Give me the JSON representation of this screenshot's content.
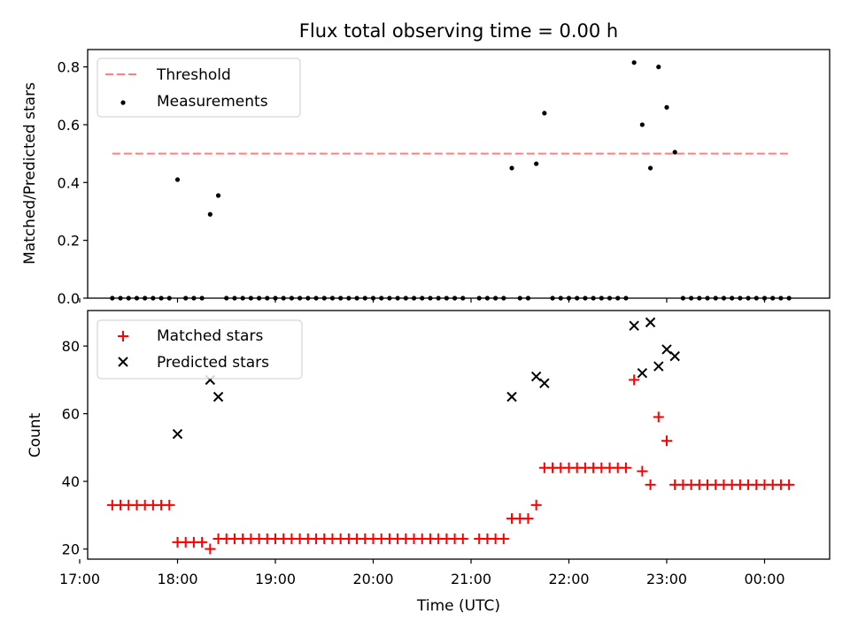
{
  "chart_data": [
    {
      "type": "scatter",
      "title": "Flux total observing time = 0.00 h",
      "xlabel": "",
      "ylabel": "Matched/Predicted stars",
      "ylim": [
        0,
        0.86
      ],
      "yticks": [
        "0.0",
        "0.2",
        "0.4",
        "0.6",
        "0.8"
      ],
      "legend_position": "top-left",
      "threshold": {
        "name": "Threshold",
        "value": 0.5,
        "x_range": [
          "17:20",
          "00:15"
        ],
        "color": "#ff7f7f"
      },
      "series": [
        {
          "name": "Measurements",
          "color": "#000000",
          "points": [
            [
              "17:20",
              0
            ],
            [
              "17:25",
              0
            ],
            [
              "17:30",
              0
            ],
            [
              "17:35",
              0
            ],
            [
              "17:40",
              0
            ],
            [
              "17:45",
              0
            ],
            [
              "17:50",
              0
            ],
            [
              "17:55",
              0
            ],
            [
              "18:00",
              0.41
            ],
            [
              "18:05",
              0
            ],
            [
              "18:10",
              0
            ],
            [
              "18:15",
              0
            ],
            [
              "18:20",
              0.29
            ],
            [
              "18:25",
              0.355
            ],
            [
              "18:30",
              0
            ],
            [
              "18:35",
              0
            ],
            [
              "18:40",
              0
            ],
            [
              "18:45",
              0
            ],
            [
              "18:50",
              0
            ],
            [
              "18:55",
              0
            ],
            [
              "19:00",
              0
            ],
            [
              "19:05",
              0
            ],
            [
              "19:10",
              0
            ],
            [
              "19:15",
              0
            ],
            [
              "19:20",
              0
            ],
            [
              "19:25",
              0
            ],
            [
              "19:30",
              0
            ],
            [
              "19:35",
              0
            ],
            [
              "19:40",
              0
            ],
            [
              "19:45",
              0
            ],
            [
              "19:50",
              0
            ],
            [
              "19:55",
              0
            ],
            [
              "20:00",
              0
            ],
            [
              "20:05",
              0
            ],
            [
              "20:10",
              0
            ],
            [
              "20:15",
              0
            ],
            [
              "20:20",
              0
            ],
            [
              "20:25",
              0
            ],
            [
              "20:30",
              0
            ],
            [
              "20:35",
              0
            ],
            [
              "20:40",
              0
            ],
            [
              "20:45",
              0
            ],
            [
              "20:50",
              0
            ],
            [
              "20:55",
              0
            ],
            [
              "21:05",
              0
            ],
            [
              "21:10",
              0
            ],
            [
              "21:15",
              0
            ],
            [
              "21:20",
              0
            ],
            [
              "21:25",
              0.45
            ],
            [
              "21:30",
              0
            ],
            [
              "21:35",
              0
            ],
            [
              "21:40",
              0.465
            ],
            [
              "21:45",
              0.64
            ],
            [
              "21:50",
              0
            ],
            [
              "21:55",
              0
            ],
            [
              "22:00",
              0
            ],
            [
              "22:05",
              0
            ],
            [
              "22:10",
              0
            ],
            [
              "22:15",
              0
            ],
            [
              "22:20",
              0
            ],
            [
              "22:25",
              0
            ],
            [
              "22:30",
              0
            ],
            [
              "22:35",
              0
            ],
            [
              "22:40",
              0.815
            ],
            [
              "22:45",
              0.6
            ],
            [
              "22:50",
              0.45
            ],
            [
              "22:55",
              0.8
            ],
            [
              "23:00",
              0.66
            ],
            [
              "23:05",
              0.505
            ],
            [
              "23:10",
              0
            ],
            [
              "23:15",
              0
            ],
            [
              "23:20",
              0
            ],
            [
              "23:25",
              0
            ],
            [
              "23:30",
              0
            ],
            [
              "23:35",
              0
            ],
            [
              "23:40",
              0
            ],
            [
              "23:45",
              0
            ],
            [
              "23:50",
              0
            ],
            [
              "23:55",
              0
            ],
            [
              "00:00",
              0
            ],
            [
              "00:05",
              0
            ],
            [
              "00:10",
              0
            ],
            [
              "00:15",
              0
            ]
          ]
        }
      ]
    },
    {
      "type": "scatter",
      "title": "",
      "xlabel": "Time (UTC)",
      "ylabel": "Count",
      "ylim": [
        17,
        90.5
      ],
      "yticks": [
        "20",
        "40",
        "60",
        "80"
      ],
      "xticks": [
        "17:00",
        "18:00",
        "19:00",
        "20:00",
        "21:00",
        "22:00",
        "23:00",
        "00:00"
      ],
      "legend_position": "top-left",
      "series": [
        {
          "name": "Matched stars",
          "color": "#ff0000",
          "points": [
            [
              "17:20",
              33
            ],
            [
              "17:25",
              33
            ],
            [
              "17:30",
              33
            ],
            [
              "17:35",
              33
            ],
            [
              "17:40",
              33
            ],
            [
              "17:45",
              33
            ],
            [
              "17:50",
              33
            ],
            [
              "17:55",
              33
            ],
            [
              "18:00",
              22
            ],
            [
              "18:05",
              22
            ],
            [
              "18:10",
              22
            ],
            [
              "18:15",
              22
            ],
            [
              "18:20",
              20
            ],
            [
              "18:25",
              23
            ],
            [
              "18:30",
              23
            ],
            [
              "18:35",
              23
            ],
            [
              "18:40",
              23
            ],
            [
              "18:45",
              23
            ],
            [
              "18:50",
              23
            ],
            [
              "18:55",
              23
            ],
            [
              "19:00",
              23
            ],
            [
              "19:05",
              23
            ],
            [
              "19:10",
              23
            ],
            [
              "19:15",
              23
            ],
            [
              "19:20",
              23
            ],
            [
              "19:25",
              23
            ],
            [
              "19:30",
              23
            ],
            [
              "19:35",
              23
            ],
            [
              "19:40",
              23
            ],
            [
              "19:45",
              23
            ],
            [
              "19:50",
              23
            ],
            [
              "19:55",
              23
            ],
            [
              "20:00",
              23
            ],
            [
              "20:05",
              23
            ],
            [
              "20:10",
              23
            ],
            [
              "20:15",
              23
            ],
            [
              "20:20",
              23
            ],
            [
              "20:25",
              23
            ],
            [
              "20:30",
              23
            ],
            [
              "20:35",
              23
            ],
            [
              "20:40",
              23
            ],
            [
              "20:45",
              23
            ],
            [
              "20:50",
              23
            ],
            [
              "20:55",
              23
            ],
            [
              "21:05",
              23
            ],
            [
              "21:10",
              23
            ],
            [
              "21:15",
              23
            ],
            [
              "21:20",
              23
            ],
            [
              "21:25",
              29
            ],
            [
              "21:30",
              29
            ],
            [
              "21:35",
              29
            ],
            [
              "21:40",
              33
            ],
            [
              "21:45",
              44
            ],
            [
              "21:50",
              44
            ],
            [
              "21:55",
              44
            ],
            [
              "22:00",
              44
            ],
            [
              "22:05",
              44
            ],
            [
              "22:10",
              44
            ],
            [
              "22:15",
              44
            ],
            [
              "22:20",
              44
            ],
            [
              "22:25",
              44
            ],
            [
              "22:30",
              44
            ],
            [
              "22:35",
              44
            ],
            [
              "22:40",
              70
            ],
            [
              "22:45",
              43
            ],
            [
              "22:50",
              39
            ],
            [
              "22:55",
              59
            ],
            [
              "23:00",
              52
            ],
            [
              "23:05",
              39
            ],
            [
              "23:10",
              39
            ],
            [
              "23:15",
              39
            ],
            [
              "23:20",
              39
            ],
            [
              "23:25",
              39
            ],
            [
              "23:30",
              39
            ],
            [
              "23:35",
              39
            ],
            [
              "23:40",
              39
            ],
            [
              "23:45",
              39
            ],
            [
              "23:50",
              39
            ],
            [
              "23:55",
              39
            ],
            [
              "00:00",
              39
            ],
            [
              "00:05",
              39
            ],
            [
              "00:10",
              39
            ],
            [
              "00:15",
              39
            ]
          ]
        },
        {
          "name": "Predicted stars",
          "color": "#000000",
          "points": [
            [
              "18:00",
              54
            ],
            [
              "18:20",
              70
            ],
            [
              "18:25",
              65
            ],
            [
              "21:25",
              65
            ],
            [
              "21:40",
              71
            ],
            [
              "21:45",
              69
            ],
            [
              "22:40",
              86
            ],
            [
              "22:45",
              72
            ],
            [
              "22:50",
              87
            ],
            [
              "22:55",
              74
            ],
            [
              "23:00",
              79
            ],
            [
              "23:05",
              77
            ]
          ]
        }
      ]
    }
  ]
}
